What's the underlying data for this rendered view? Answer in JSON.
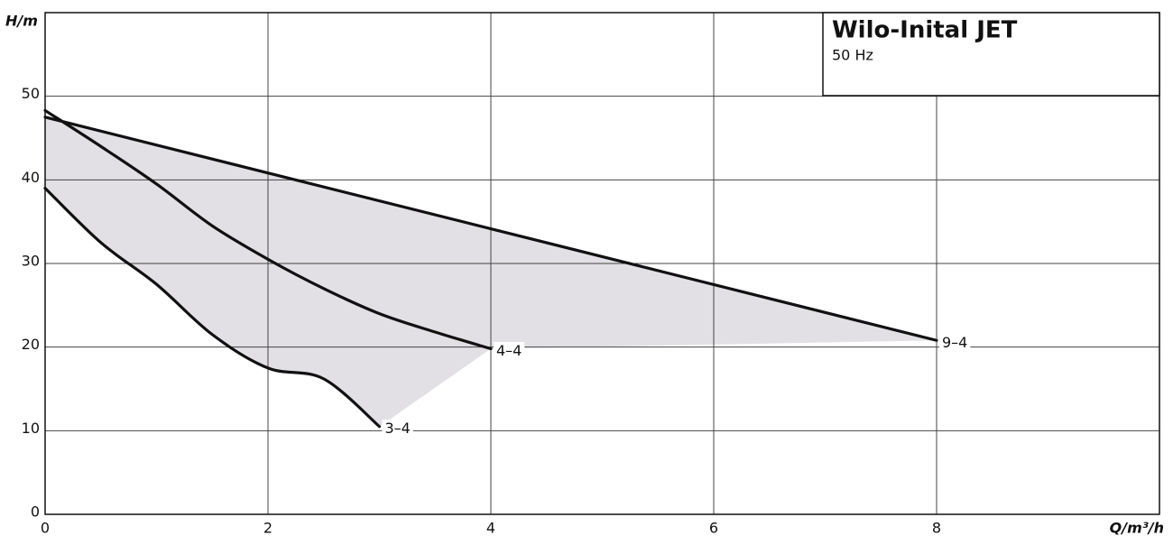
{
  "chart_data": {
    "type": "line",
    "title": "Wilo-Inital JET",
    "subtitle": "50 Hz",
    "x_label": "Q/m³/h",
    "y_label": "H/m",
    "xlim": [
      0,
      10
    ],
    "ylim": [
      0,
      60
    ],
    "xticks": [
      0,
      2,
      4,
      6,
      8
    ],
    "yticks": [
      0,
      10,
      20,
      30,
      40,
      50
    ],
    "grid": true,
    "area_color": "#e2e0e4",
    "series": [
      {
        "name": "3–4",
        "color": "#111111",
        "x": [
          0,
          0.5,
          1,
          1.5,
          2,
          2.5,
          3
        ],
        "values": [
          39,
          32.5,
          27.5,
          21.5,
          17.5,
          16.2,
          10.5
        ]
      },
      {
        "name": "4–4",
        "color": "#111111",
        "x": [
          0,
          0.5,
          1,
          1.5,
          2,
          2.5,
          3,
          3.5,
          4
        ],
        "values": [
          48.3,
          44,
          39.5,
          34.5,
          30.5,
          27,
          24,
          21.8,
          19.8
        ]
      },
      {
        "name": "9–4",
        "color": "#111111",
        "x": [
          0,
          8
        ],
        "values": [
          47.5,
          20.8
        ]
      }
    ]
  }
}
